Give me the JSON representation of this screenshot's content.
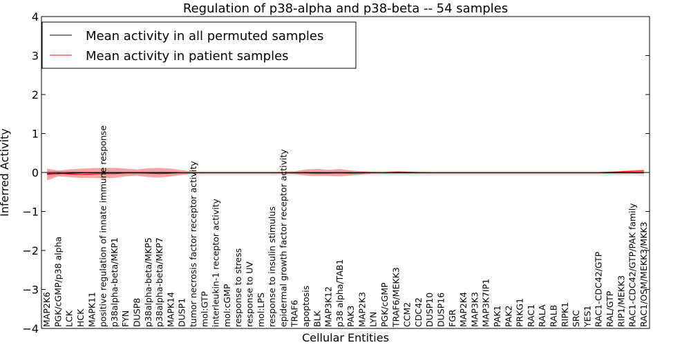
{
  "chart_data": {
    "type": "line",
    "title": "Regulation of p38-alpha and p38-beta -- 54 samples",
    "xlabel": "Cellular Entities",
    "ylabel": "Inferred Activity",
    "ylim": [
      -4,
      4
    ],
    "yticks": [
      -4,
      -3,
      -2,
      -1,
      0,
      1,
      2,
      3,
      4
    ],
    "ytick_labels": [
      "−4",
      "−3",
      "−2",
      "−1",
      "0",
      "1",
      "2",
      "3",
      "4"
    ],
    "legend_position": "top-left",
    "categories": [
      "MAP2K6",
      "PGK/cGMP/p38 alpha",
      "LCK",
      "HCK",
      "MAPK11",
      "positive regulation of innate immune response",
      "p38alpha-beta/MKP1",
      "FYN",
      "DUSP8",
      "p38alpha-beta/MKP5",
      "p38alpha-beta/MKP7",
      "MAPK14",
      "DUSP1",
      "tumor necrosis factor receptor activity",
      "mol:GTP",
      "interleukin-1 receptor activity",
      "mol:cGMP",
      "response to stress",
      "response to UV",
      "mol:LPS",
      "response to insulin stimulus",
      "epidermal growth factor receptor activity",
      "TRAF6",
      "apoptosis",
      "BLK",
      "MAP3K12",
      "p38 alpha/TAB1",
      "PAK3",
      "MAP2K3",
      "LYN",
      "PGK/cGMP",
      "TRAF6/MEKK3",
      "CCM2",
      "CDC42",
      "DUSP10",
      "DUSP16",
      "FGR",
      "MAP2K4",
      "MAP3K3",
      "MAP3K7IP1",
      "PAK1",
      "PAK2",
      "PRKG1",
      "RAC1",
      "RALA",
      "RALB",
      "RIPK1",
      "SRC",
      "YES1",
      "RAC1-CDC42/GTP",
      "RAL/GTP",
      "RIP1/MEKK3",
      "RAC1-CDC42/GTP/PAK family",
      "RAC1/OSM/MEKK3/MKK3"
    ],
    "series": [
      {
        "name": "Mean activity in all permuted samples",
        "color": "#000000",
        "values": [
          -0.03,
          -0.03,
          -0.02,
          -0.01,
          -0.01,
          -0.01,
          -0.01,
          -0.01,
          -0.01,
          -0.01,
          -0.01,
          -0.01,
          -0.01,
          -0.01,
          -0.01,
          -0.01,
          -0.01,
          -0.01,
          -0.01,
          -0.01,
          -0.01,
          -0.01,
          -0.01,
          -0.01,
          -0.01,
          -0.01,
          -0.01,
          -0.01,
          -0.01,
          -0.01,
          -0.01,
          -0.01,
          -0.01,
          -0.01,
          -0.01,
          -0.01,
          -0.01,
          -0.01,
          -0.01,
          -0.01,
          -0.01,
          -0.01,
          -0.01,
          -0.01,
          -0.01,
          -0.01,
          -0.01,
          -0.01,
          -0.01,
          -0.01,
          -0.01,
          -0.01,
          -0.01,
          -0.01
        ],
        "band_upper": [
          0.05,
          0.04,
          0.04,
          0.04,
          0.04,
          0.04,
          0.04,
          0.04,
          0.04,
          0.04,
          0.04,
          0.04,
          0.04,
          0.04,
          0.04,
          0.04,
          0.04,
          0.04,
          0.04,
          0.04,
          0.04,
          0.04,
          0.04,
          0.04,
          0.04,
          0.04,
          0.04,
          0.04,
          0.04,
          0.04,
          0.04,
          0.04,
          0.04,
          0.04,
          0.04,
          0.04,
          0.04,
          0.04,
          0.04,
          0.04,
          0.04,
          0.04,
          0.04,
          0.04,
          0.04,
          0.04,
          0.04,
          0.04,
          0.04,
          0.04,
          0.04,
          0.04,
          0.04,
          0.05
        ],
        "band_lower": [
          -0.1,
          -0.08,
          -0.07,
          -0.07,
          -0.07,
          -0.07,
          -0.07,
          -0.07,
          -0.07,
          -0.07,
          -0.07,
          -0.07,
          -0.07,
          -0.07,
          -0.07,
          -0.07,
          -0.07,
          -0.07,
          -0.07,
          -0.07,
          -0.07,
          -0.07,
          -0.07,
          -0.07,
          -0.07,
          -0.07,
          -0.07,
          -0.07,
          -0.07,
          -0.07,
          -0.07,
          -0.07,
          -0.07,
          -0.07,
          -0.07,
          -0.07,
          -0.07,
          -0.07,
          -0.07,
          -0.07,
          -0.07,
          -0.07,
          -0.07,
          -0.07,
          -0.07,
          -0.07,
          -0.07,
          -0.07,
          -0.07,
          -0.07,
          -0.07,
          -0.07,
          -0.07,
          -0.1
        ]
      },
      {
        "name": "Mean activity in patient samples",
        "color": "#ff0000",
        "values": [
          -0.05,
          -0.02,
          -0.04,
          -0.05,
          -0.04,
          -0.03,
          -0.03,
          -0.01,
          -0.01,
          -0.02,
          -0.03,
          -0.02,
          0.0,
          0.0,
          0.0,
          0.0,
          0.0,
          0.0,
          0.0,
          0.0,
          0.0,
          0.0,
          0.0,
          -0.01,
          -0.02,
          -0.02,
          -0.01,
          -0.02,
          -0.01,
          0.0,
          0.0,
          0.01,
          0.01,
          0.0,
          0.0,
          0.0,
          0.0,
          0.0,
          0.0,
          0.0,
          0.0,
          0.0,
          0.0,
          0.0,
          0.0,
          0.0,
          0.0,
          0.0,
          0.0,
          0.0,
          0.01,
          0.02,
          0.03,
          0.04
        ],
        "band_upper": [
          0.1,
          0.05,
          0.08,
          0.1,
          0.11,
          0.12,
          0.12,
          0.1,
          0.08,
          0.11,
          0.12,
          0.1,
          0.06,
          0.02,
          0.01,
          0.01,
          0.01,
          0.01,
          0.01,
          0.01,
          0.01,
          0.02,
          0.03,
          0.08,
          0.09,
          0.07,
          0.09,
          0.05,
          0.03,
          0.02,
          0.02,
          0.04,
          0.02,
          0.02,
          0.01,
          0.01,
          0.01,
          0.01,
          0.01,
          0.01,
          0.01,
          0.01,
          0.01,
          0.01,
          0.01,
          0.01,
          0.01,
          0.01,
          0.01,
          0.01,
          0.02,
          0.04,
          0.06,
          0.08
        ],
        "band_lower": [
          -0.2,
          -0.1,
          -0.12,
          -0.14,
          -0.14,
          -0.15,
          -0.14,
          -0.1,
          -0.08,
          -0.12,
          -0.13,
          -0.1,
          -0.06,
          -0.02,
          -0.01,
          -0.01,
          -0.01,
          -0.01,
          -0.01,
          -0.01,
          -0.01,
          -0.02,
          -0.04,
          -0.08,
          -0.09,
          -0.09,
          -0.1,
          -0.08,
          -0.05,
          -0.02,
          -0.02,
          -0.02,
          -0.01,
          -0.01,
          -0.01,
          -0.01,
          -0.01,
          -0.01,
          -0.01,
          -0.01,
          -0.01,
          -0.01,
          -0.01,
          -0.01,
          -0.01,
          -0.01,
          -0.01,
          -0.01,
          -0.01,
          -0.01,
          -0.01,
          0.0,
          0.0,
          0.0
        ]
      }
    ],
    "band_colors": {
      "permuted": "#b0b0b0",
      "patient": "#f08080"
    }
  }
}
